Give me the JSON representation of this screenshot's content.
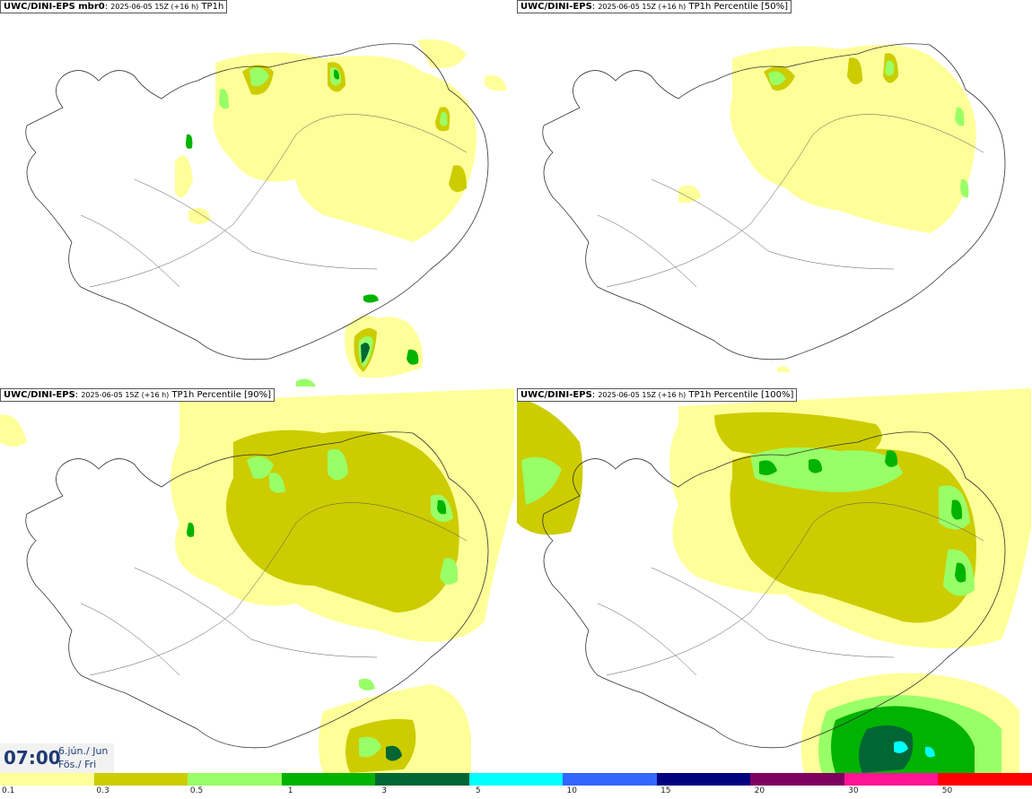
{
  "panels": [
    {
      "model": "UWC/DINI-EPS mbr0",
      "run": "2025-06-05 15Z (+16 h)",
      "field": "TP1h"
    },
    {
      "model": "UWC/DINI-EPS",
      "run": "2025-06-05 15Z (+16 h)",
      "field": "TP1h Percentile [50%]"
    },
    {
      "model": "UWC/DINI-EPS",
      "run": "2025-06-05 15Z (+16 h)",
      "field": "TP1h Percentile [90%]"
    },
    {
      "model": "UWC/DINI-EPS",
      "run": "2025-06-05 15Z (+16 h)",
      "field": "TP1h Percentile [100%]"
    }
  ],
  "time": {
    "clock": "07:00",
    "date_line1": "6.jún./ Jun",
    "date_line2": "Fös./ Fri"
  },
  "legend": {
    "colors": [
      "#ffff99",
      "#cccc00",
      "#99ff66",
      "#00b300",
      "#006633",
      "#00ffff",
      "#3366ff",
      "#000080",
      "#800060",
      "#ff1493",
      "#ff0000"
    ],
    "labels": [
      "0.1",
      "0.3",
      "0.5",
      "1",
      "3",
      "5",
      "10",
      "15",
      "20",
      "30",
      "50"
    ]
  },
  "colors": {
    "precip_light": "#ffff99",
    "precip_olive": "#cccc00",
    "precip_lightgreen": "#99ff66",
    "precip_green": "#00b300",
    "precip_dark": "#006633",
    "precip_cyan": "#00ffff"
  }
}
